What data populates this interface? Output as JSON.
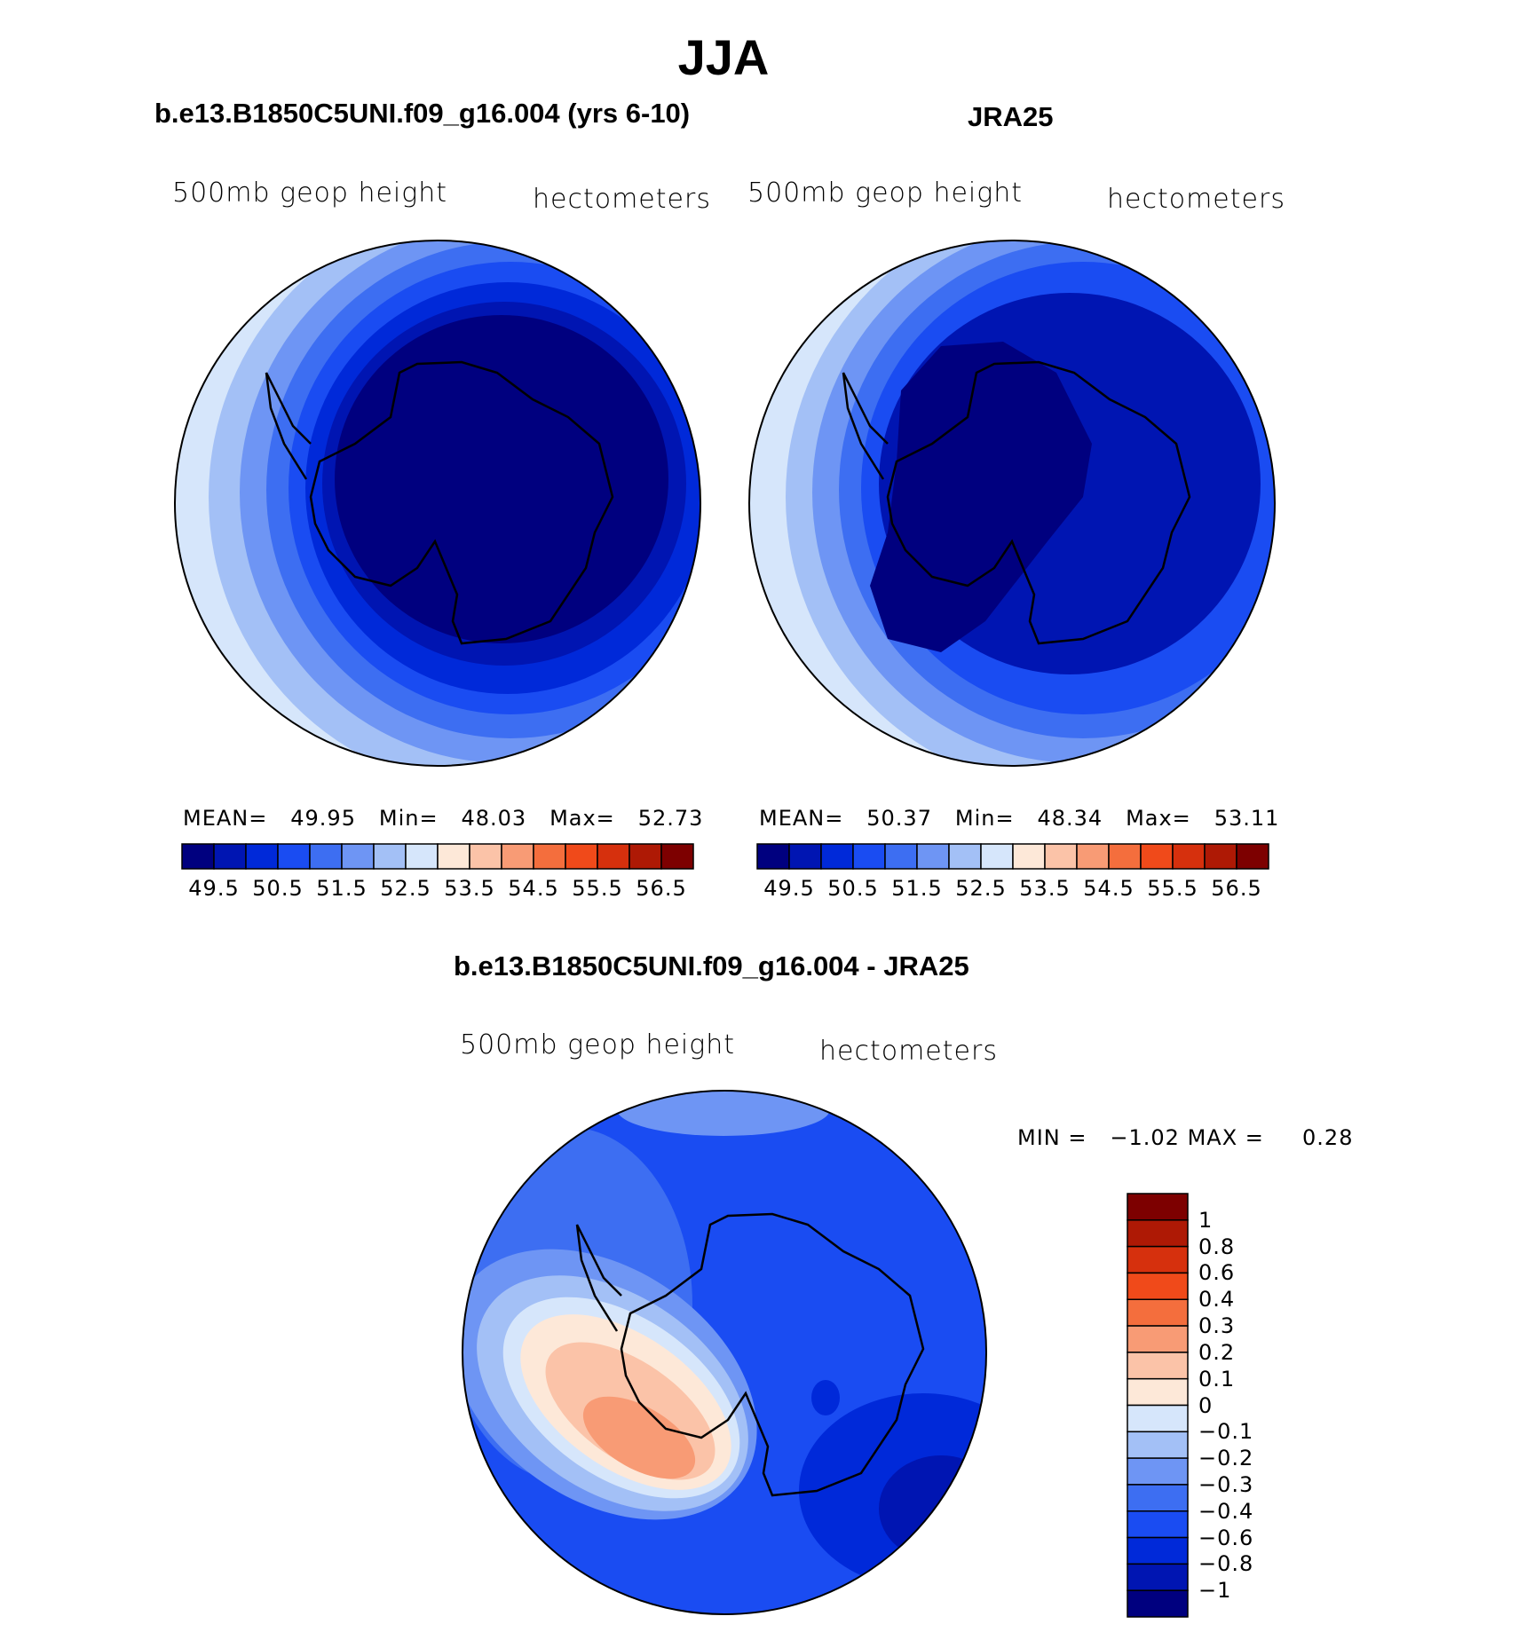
{
  "figure": {
    "title": "JJA"
  },
  "panels": {
    "model": {
      "title": "b.e13.B1850C5UNI.f09_g16.004 (yrs 6-10)",
      "variable": "500mb geop height",
      "units": "hectometers",
      "stats": {
        "mean_label": "MEAN=",
        "mean": "49.95",
        "min_label": "Min=",
        "min": "48.03",
        "max_label": "Max=",
        "max": "52.73"
      }
    },
    "obs": {
      "title": "JRA25",
      "variable": "500mb geop height",
      "units": "hectometers",
      "stats": {
        "mean_label": "MEAN=",
        "mean": "50.37",
        "min_label": "Min=",
        "min": "48.34",
        "max_label": "Max=",
        "max": "53.11"
      }
    },
    "diff": {
      "title": "b.e13.B1850C5UNI.f09_g16.004 - JRA25",
      "variable": "500mb geop height",
      "units": "hectometers",
      "stats": {
        "min_label": "MIN =",
        "min": "−1.02",
        "max_label": "MAX =",
        "max": "0.28"
      }
    }
  },
  "colorbars": {
    "abs": {
      "colors": [
        "#00007f",
        "#0015b2",
        "#0029d9",
        "#1a4cf2",
        "#3d6ef2",
        "#6e95f4",
        "#a3c0f6",
        "#d6e6fb",
        "#fde8d8",
        "#fbc3a8",
        "#f89b75",
        "#f46e3d",
        "#f04a1a",
        "#d6300d",
        "#ae1905",
        "#7d0000"
      ],
      "tick_labels": [
        "49.5",
        "50.5",
        "51.5",
        "52.5",
        "53.5",
        "54.5",
        "55.5",
        "56.5"
      ]
    },
    "diff": {
      "colors": [
        "#00007f",
        "#0015b2",
        "#0029d9",
        "#1a4cf2",
        "#3d6ef2",
        "#6e95f4",
        "#a3c0f6",
        "#d6e6fb",
        "#fde8d8",
        "#fbc3a8",
        "#f89b75",
        "#f46e3d",
        "#f04a1a",
        "#d6300d",
        "#ae1905",
        "#7d0000"
      ],
      "tick_labels": [
        "1",
        "0.8",
        "0.6",
        "0.4",
        "0.3",
        "0.2",
        "0.1",
        "0",
        "−0.1",
        "−0.2",
        "−0.3",
        "−0.4",
        "−0.6",
        "−0.8",
        "−1"
      ]
    }
  },
  "chart_data": [
    {
      "type": "map",
      "projection": "south polar stereographic",
      "title": "b.e13.B1850C5UNI.f09_g16.004 (yrs 6-10)",
      "field": "500mb geop height",
      "units": "hectometers",
      "mean": 49.95,
      "min": 48.03,
      "max": 52.73,
      "contour_levels": [
        49.5,
        50,
        50.5,
        51,
        51.5,
        52,
        52.5,
        53,
        53.5,
        54,
        54.5,
        55,
        55.5,
        56,
        56.5
      ]
    },
    {
      "type": "map",
      "projection": "south polar stereographic",
      "title": "JRA25",
      "field": "500mb geop height",
      "units": "hectometers",
      "mean": 50.37,
      "min": 48.34,
      "max": 53.11,
      "contour_levels": [
        49.5,
        50,
        50.5,
        51,
        51.5,
        52,
        52.5,
        53,
        53.5,
        54,
        54.5,
        55,
        55.5,
        56,
        56.5
      ]
    },
    {
      "type": "map",
      "projection": "south polar stereographic",
      "title": "b.e13.B1850C5UNI.f09_g16.004 - JRA25",
      "field": "500mb geop height",
      "units": "hectometers",
      "min": -1.02,
      "max": 0.28,
      "contour_levels": [
        -1,
        -0.8,
        -0.6,
        -0.4,
        -0.3,
        -0.2,
        -0.1,
        0,
        0.1,
        0.2,
        0.3,
        0.4,
        0.6,
        0.8,
        1
      ]
    }
  ]
}
